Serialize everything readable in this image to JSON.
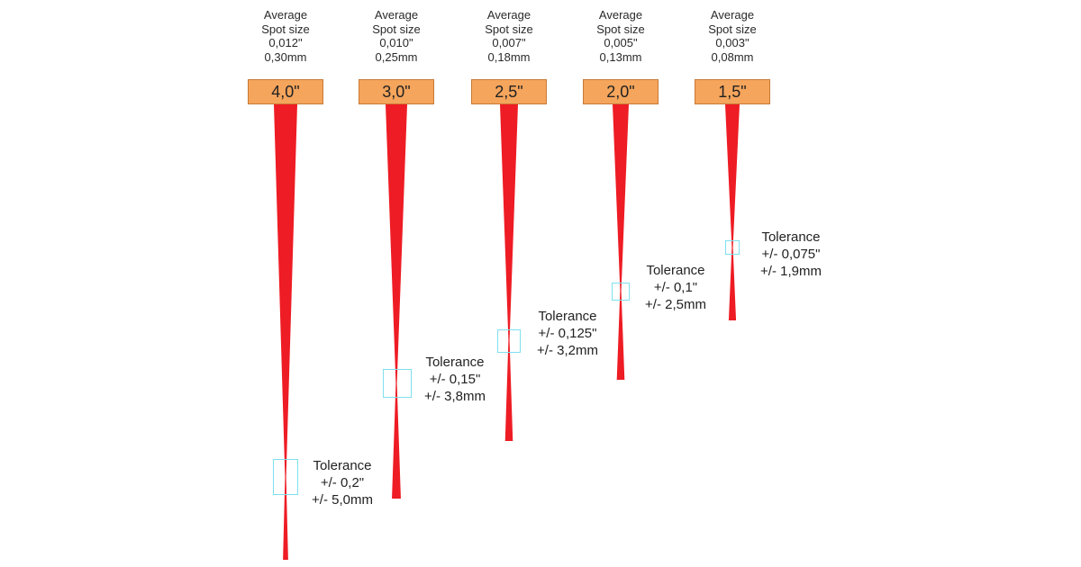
{
  "lenses": [
    {
      "spot_label": "Average",
      "spot_label2": "Spot size",
      "spot_in": "0,012\"",
      "spot_mm": "0,30mm",
      "lens": "4,0\"",
      "tolerance_label": "Tolerance",
      "tolerance_in": "+/- 0,2\"",
      "tolerance_mm": "+/- 5,0mm"
    },
    {
      "spot_label": "Average",
      "spot_label2": "Spot size",
      "spot_in": "0,010\"",
      "spot_mm": "0,25mm",
      "lens": "3,0\"",
      "tolerance_label": "Tolerance",
      "tolerance_in": "+/- 0,15\"",
      "tolerance_mm": "+/- 3,8mm"
    },
    {
      "spot_label": "Average",
      "spot_label2": "Spot size",
      "spot_in": "0,007\"",
      "spot_mm": "0,18mm",
      "lens": "2,5\"",
      "tolerance_label": "Tolerance",
      "tolerance_in": "+/- 0,125\"",
      "tolerance_mm": "+/- 3,2mm"
    },
    {
      "spot_label": "Average",
      "spot_label2": "Spot size",
      "spot_in": "0,005\"",
      "spot_mm": "0,13mm",
      "lens": "2,0\"",
      "tolerance_label": "Tolerance",
      "tolerance_in": "+/- 0,1\"",
      "tolerance_mm": "+/- 2,5mm"
    },
    {
      "spot_label": "Average",
      "spot_label2": "Spot size",
      "spot_in": "0,003\"",
      "spot_mm": "0,08mm",
      "lens": "1,5\"",
      "tolerance_label": "Tolerance",
      "tolerance_in": "+/- 0,075\"",
      "tolerance_mm": "+/- 1,9mm"
    }
  ],
  "colors": {
    "beam": "#ee1c24",
    "lens_box": "#f5a55c",
    "lens_border": "#c87a35",
    "tolerance_box": "#7fe0ee"
  }
}
